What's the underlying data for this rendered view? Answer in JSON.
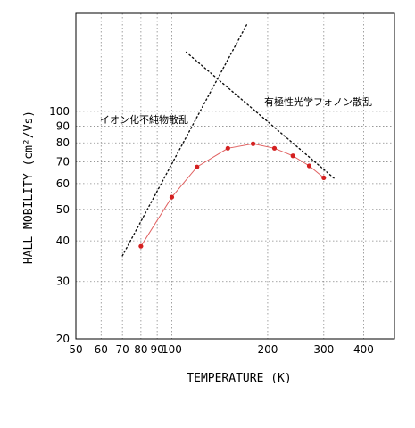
{
  "chart_data": {
    "type": "scatter",
    "xlabel": "TEMPERATURE (K)",
    "ylabel": "HALL MOBILITY (cm²/Vs)",
    "x_scale": "log",
    "y_scale": "log",
    "xlim": [
      50,
      500
    ],
    "ylim": [
      20,
      200
    ],
    "grid": true,
    "x_ticks": [
      50,
      60,
      70,
      80,
      90,
      100,
      200,
      300,
      400
    ],
    "x_tick_labels": [
      "50",
      "60",
      "70",
      "80",
      "90",
      "100",
      "200",
      "300",
      "400"
    ],
    "y_ticks": [
      20,
      30,
      40,
      50,
      60,
      70,
      80,
      90,
      100
    ],
    "y_tick_labels": [
      "20",
      "30",
      "40",
      "50",
      "60",
      "70",
      "80",
      "90",
      "100"
    ],
    "series": [
      {
        "style": "red points connected by line",
        "color": "#d42020",
        "x": [
          80,
          100,
          120,
          150,
          180,
          210,
          240,
          270,
          300
        ],
        "y": [
          38.5,
          54.5,
          67.5,
          77,
          79.5,
          77,
          73,
          68,
          62.5
        ]
      }
    ],
    "reference_lines": [
      {
        "label": "イオン化不純物散乱",
        "style": "dotted",
        "x": [
          70,
          172
        ],
        "y": [
          36,
          185
        ]
      },
      {
        "label": "有極性光学フォノン散乱",
        "style": "dotted",
        "x": [
          111,
          325
        ],
        "y": [
          152,
          62
        ]
      }
    ],
    "annotations": [
      {
        "text": "イオン化不純物散乱"
      },
      {
        "text": "有極性光学フォノン散乱"
      }
    ]
  }
}
